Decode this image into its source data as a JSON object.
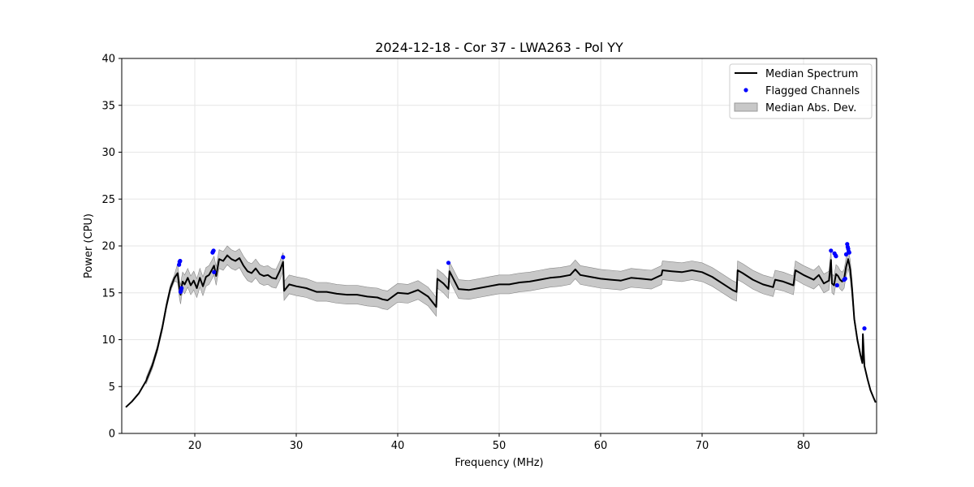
{
  "chart_data": {
    "type": "line",
    "title": "2024-12-18 - Cor 37 - LWA263 - Pol YY",
    "xlabel": "Frequency (MHz)",
    "ylabel": "Power (CPU)",
    "xlim": [
      12.8,
      87.2
    ],
    "ylim": [
      0,
      40
    ],
    "xticks": [
      20,
      30,
      40,
      50,
      60,
      70,
      80
    ],
    "yticks": [
      0,
      5,
      10,
      15,
      20,
      25,
      30,
      35,
      40
    ],
    "grid": true,
    "legend_position": "top-right",
    "legend": [
      {
        "key": "median",
        "label": "Median Spectrum"
      },
      {
        "key": "flagged",
        "label": "Flagged Channels"
      },
      {
        "key": "mad",
        "label": "Median Abs. Dev."
      }
    ],
    "colors": {
      "median": "#000000",
      "flagged": "#0000ff",
      "mad_fill": "#c8c8c8",
      "mad_edge": "#888888",
      "grid": "#e6e6e6"
    },
    "series": [
      {
        "name": "Median Spectrum",
        "x": [
          13.2,
          13.8,
          14.5,
          15.2,
          15.8,
          16.3,
          16.8,
          17.2,
          17.6,
          18.0,
          18.3,
          18.5,
          18.6,
          18.7,
          18.8,
          19.0,
          19.3,
          19.6,
          19.9,
          20.2,
          20.5,
          20.8,
          21.1,
          21.4,
          21.7,
          21.9,
          22.1,
          22.4,
          22.8,
          23.2,
          23.6,
          24.0,
          24.4,
          24.8,
          25.2,
          25.6,
          26.0,
          26.4,
          26.8,
          27.2,
          27.6,
          28.0,
          28.4,
          28.7,
          28.8,
          29.3,
          30.0,
          31.0,
          32.0,
          33.0,
          34.0,
          35.0,
          36.0,
          37.0,
          38.0,
          38.5,
          39.0,
          39.5,
          40.0,
          41.0,
          42.0,
          43.0,
          43.8,
          43.9,
          44.5,
          45.0,
          45.1,
          46.0,
          47.0,
          48.0,
          49.0,
          50.0,
          51.0,
          52.0,
          53.0,
          54.0,
          55.0,
          56.0,
          57.0,
          57.5,
          58.0,
          59.0,
          60.0,
          61.0,
          62.0,
          63.0,
          64.0,
          65.0,
          66.0,
          66.1,
          67.0,
          68.0,
          69.0,
          70.0,
          71.0,
          72.0,
          73.0,
          73.4,
          73.5,
          74.0,
          75.0,
          76.0,
          77.0,
          77.2,
          78.0,
          79.0,
          79.2,
          80.0,
          81.0,
          81.5,
          82.0,
          82.5,
          82.7,
          82.8,
          83.0,
          83.2,
          83.4,
          83.6,
          83.8,
          84.0,
          84.2,
          84.4,
          84.6,
          84.8,
          85.0,
          85.3,
          85.6,
          85.8,
          85.85,
          86.0,
          86.3,
          86.6,
          86.9,
          87.1
        ],
        "values": [
          2.8,
          3.4,
          4.3,
          5.6,
          7.2,
          9.0,
          11.3,
          13.6,
          15.5,
          16.6,
          17.1,
          15.3,
          14.8,
          15.6,
          16.2,
          15.9,
          16.6,
          15.8,
          16.3,
          15.5,
          16.6,
          15.7,
          16.7,
          16.9,
          17.5,
          17.9,
          16.8,
          18.6,
          18.4,
          19.0,
          18.6,
          18.4,
          18.7,
          17.9,
          17.3,
          17.1,
          17.6,
          17.0,
          16.8,
          16.9,
          16.6,
          16.5,
          17.4,
          18.3,
          15.2,
          15.9,
          15.7,
          15.5,
          15.1,
          15.1,
          14.9,
          14.8,
          14.8,
          14.6,
          14.5,
          14.3,
          14.2,
          14.6,
          15.0,
          14.9,
          15.3,
          14.6,
          13.5,
          16.5,
          16.0,
          15.4,
          17.3,
          15.4,
          15.3,
          15.5,
          15.7,
          15.9,
          15.9,
          16.1,
          16.2,
          16.4,
          16.6,
          16.7,
          16.9,
          17.5,
          16.9,
          16.7,
          16.5,
          16.4,
          16.3,
          16.6,
          16.5,
          16.4,
          16.9,
          17.4,
          17.3,
          17.2,
          17.4,
          17.2,
          16.7,
          16.0,
          15.3,
          15.1,
          17.4,
          17.1,
          16.4,
          15.9,
          15.6,
          16.4,
          16.2,
          15.8,
          17.4,
          16.9,
          16.4,
          16.9,
          16.0,
          16.3,
          18.5,
          16.0,
          15.8,
          17.0,
          16.8,
          16.4,
          16.2,
          16.5,
          17.8,
          18.6,
          17.5,
          15.2,
          12.2,
          10.0,
          8.4,
          7.5,
          10.6,
          7.2,
          5.8,
          4.6,
          3.8,
          3.3
        ],
        "mad_width": 1.0
      }
    ],
    "flagged_channels": {
      "x": [
        18.45,
        18.5,
        18.55,
        18.6,
        18.65,
        18.7,
        21.75,
        21.8,
        21.85,
        21.9,
        28.7,
        45.0,
        82.7,
        83.05,
        83.15,
        83.2,
        83.3,
        84.0,
        84.1,
        84.2,
        84.3,
        84.35,
        84.4,
        84.45,
        84.5,
        86.0
      ],
      "y": [
        18.0,
        18.3,
        18.4,
        15.1,
        15.3,
        15.5,
        19.3,
        19.4,
        19.5,
        17.2,
        18.8,
        18.2,
        19.5,
        19.2,
        19.0,
        18.9,
        15.8,
        16.4,
        16.5,
        19.1,
        20.2,
        19.9,
        19.7,
        19.4,
        19.3,
        11.2
      ]
    }
  }
}
